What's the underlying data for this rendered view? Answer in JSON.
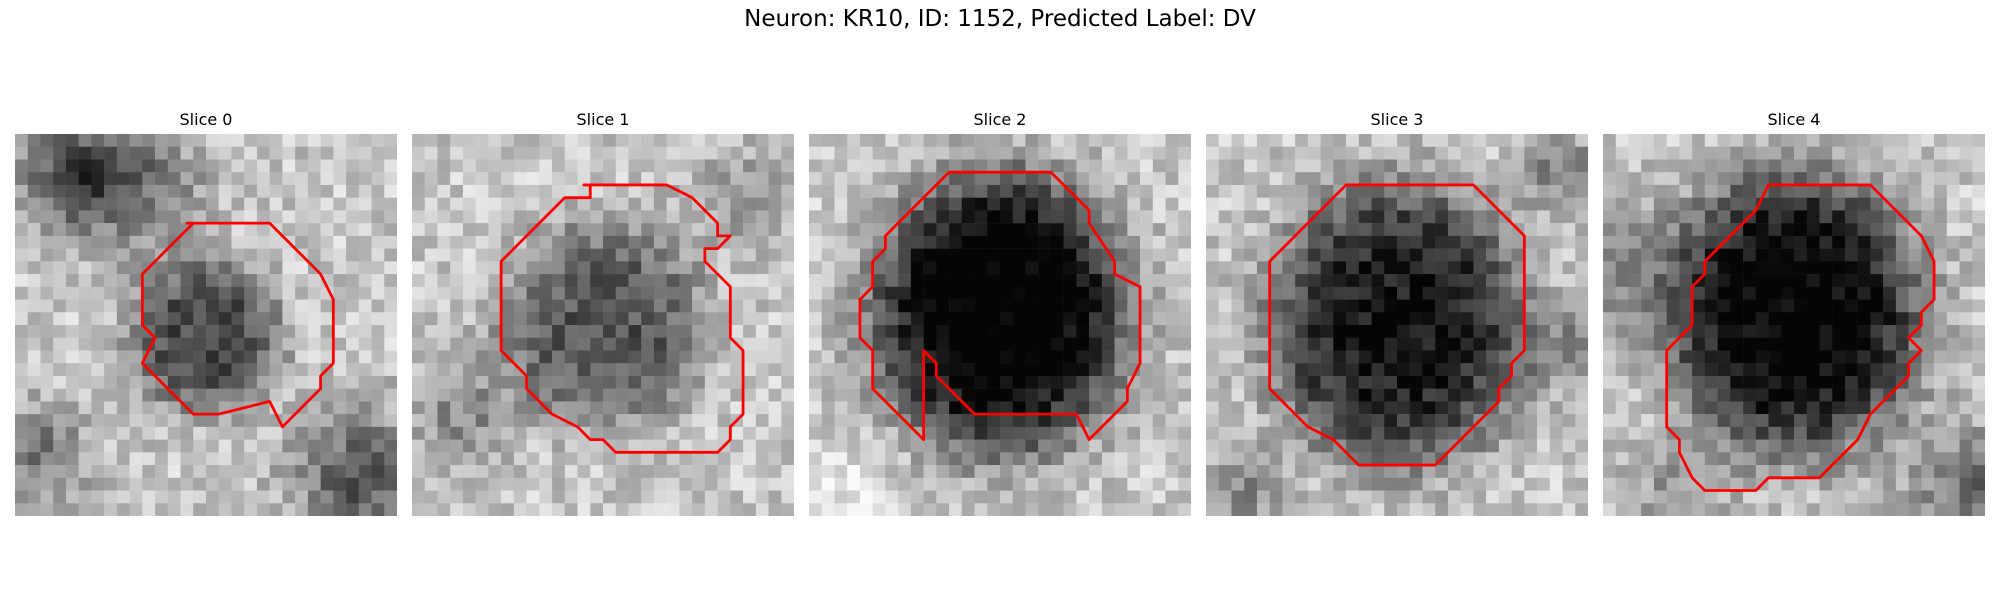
{
  "figure": {
    "title": "Neuron: KR10, ID: 1152, Predicted Label: DV"
  },
  "colors": {
    "contour": "#ff0000",
    "background": "#ffffff"
  },
  "panels": [
    {
      "title": "Slice 0"
    },
    {
      "title": "Slice 1"
    },
    {
      "title": "Slice 2"
    },
    {
      "title": "Slice 3"
    },
    {
      "title": "Slice 4"
    }
  ]
}
